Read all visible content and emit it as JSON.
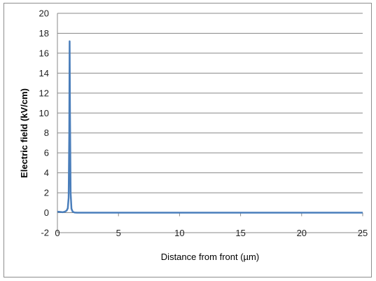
{
  "chart_data": {
    "type": "line",
    "title": "",
    "xlabel": "Distance from front (µm)",
    "ylabel": "Electric field (kV/cm)",
    "xlim": [
      0,
      25
    ],
    "ylim": [
      -2,
      20
    ],
    "x_ticks": [
      0,
      5,
      10,
      15,
      20,
      25
    ],
    "y_ticks": [
      -2,
      0,
      2,
      4,
      6,
      8,
      10,
      12,
      14,
      16,
      18,
      20
    ],
    "grid": "horizontal",
    "legend": "none",
    "series": [
      {
        "color": "#4a7ebb",
        "x": [
          0,
          0.2,
          0.45,
          0.6,
          0.75,
          0.85,
          0.92,
          0.97,
          1.0,
          1.03,
          1.08,
          1.15,
          1.25,
          1.4,
          1.6,
          2,
          5,
          10,
          15,
          20,
          25
        ],
        "y": [
          0.1,
          0.08,
          0.05,
          0.1,
          0.2,
          0.45,
          1.5,
          8,
          17.2,
          10,
          2,
          0.4,
          0.1,
          0.02,
          0.0,
          0.0,
          0.0,
          0.0,
          0.0,
          0.0,
          0.0
        ]
      }
    ]
  }
}
